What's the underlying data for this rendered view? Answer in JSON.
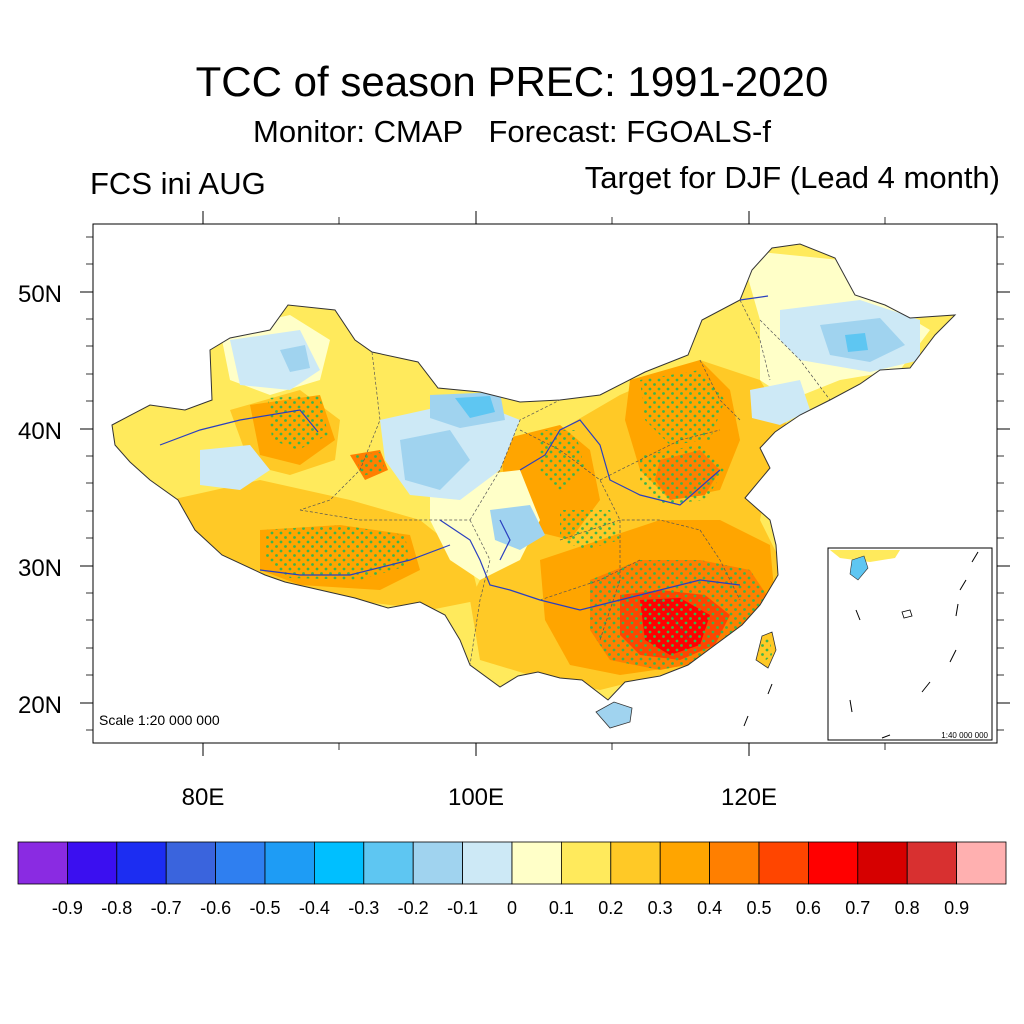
{
  "title": "TCC of season PREC: 1991-2020",
  "subtitle": "Monitor: CMAP   Forecast: FGOALS-f",
  "left_label": "FCS ini AUG",
  "right_label": "Target for DJF (Lead 4 month)",
  "map": {
    "scale_label": "Scale 1:20 000 000",
    "inset_scale_label": "1:40 000 000",
    "lon_ticks": [
      "80E",
      "100E",
      "120E"
    ],
    "lat_ticks": [
      "50N",
      "40N",
      "30N",
      "20N"
    ],
    "stipple_color": "#3cb44b"
  },
  "colorbar": {
    "labels": [
      "-0.9",
      "-0.8",
      "-0.7",
      "-0.6",
      "-0.5",
      "-0.4",
      "-0.3",
      "-0.2",
      "-0.1",
      "0",
      "0.1",
      "0.2",
      "0.3",
      "0.4",
      "0.5",
      "0.6",
      "0.7",
      "0.8",
      "0.9"
    ],
    "colors": [
      "#8a2be2",
      "#3b0ff0",
      "#1c2df2",
      "#3a64dd",
      "#2f7ff0",
      "#1e9cf5",
      "#00bfff",
      "#5ec6f2",
      "#a0d3ef",
      "#cde9f6",
      "#ffffc8",
      "#ffea5c",
      "#ffc926",
      "#ffa500",
      "#ff7f00",
      "#ff4500",
      "#ff0000",
      "#d60000",
      "#d83030",
      "#ffb0b0"
    ]
  }
}
